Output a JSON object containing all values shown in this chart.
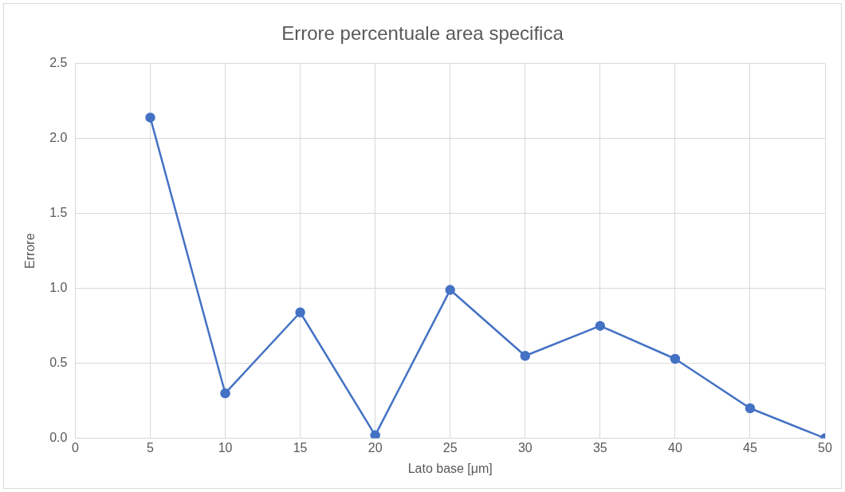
{
  "chart_data": {
    "type": "line",
    "title": "Errore percentuale area specifica",
    "xlabel": "Lato base [μm]",
    "ylabel": "Errore",
    "x": [
      5,
      10,
      15,
      20,
      25,
      30,
      35,
      40,
      45,
      50
    ],
    "series": [
      {
        "color": "#4472c4",
        "values": [
          2.14,
          0.3,
          0.84,
          0.02,
          0.99,
          0.55,
          0.75,
          0.53,
          0.2,
          0.0
        ]
      }
    ],
    "xlim": [
      0,
      50
    ],
    "xticks": [
      0,
      5,
      10,
      15,
      20,
      25,
      30,
      35,
      40,
      45,
      50
    ],
    "ylim": [
      0,
      2.5
    ],
    "yticks": [
      {
        "value": 0,
        "label": "0.0"
      },
      {
        "value": 0.5,
        "label": "0.5"
      },
      {
        "value": 1,
        "label": "1.0"
      },
      {
        "value": 1.5,
        "label": "1.5"
      },
      {
        "value": 2,
        "label": "2.0"
      },
      {
        "value": 2.5,
        "label": "2.5"
      }
    ],
    "grid": true,
    "legend": false,
    "marker": "circle",
    "line_style": "solid"
  }
}
